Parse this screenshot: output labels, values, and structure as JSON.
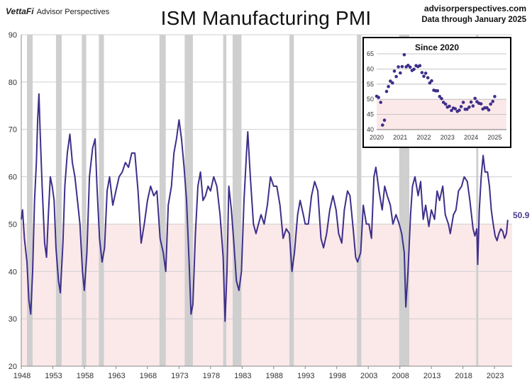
{
  "brand": {
    "logo": "VettaFi",
    "name": "Advisor Perspectives"
  },
  "title": "ISM Manufacturing PMI",
  "source": {
    "site": "advisorperspectives.com",
    "note": "Data through January 2025"
  },
  "colors": {
    "line": "#3f2f8a",
    "recession": "#cfcfcf",
    "below50": "#fbe9ea",
    "grid": "#cfcfcf"
  },
  "chart_data": {
    "type": "line",
    "series": [
      {
        "name": "",
        "last_label": "50.9"
      }
    ],
    "ylim": [
      20,
      90
    ],
    "yticks": [
      20,
      30,
      40,
      50,
      60,
      70,
      80,
      90
    ],
    "xticks": [
      "1948",
      "1953",
      "1958",
      "1963",
      "1968",
      "1973",
      "1978",
      "1983",
      "1988",
      "1993",
      "1998",
      "2003",
      "2008",
      "2013",
      "2018",
      "2023"
    ],
    "recessions": [
      [
        1948.9,
        1949.8
      ],
      [
        1953.5,
        1954.4
      ],
      [
        1957.6,
        1958.3
      ],
      [
        1960.3,
        1961.1
      ],
      [
        1969.9,
        1970.9
      ],
      [
        1973.9,
        1975.2
      ],
      [
        1980.0,
        1980.5
      ],
      [
        1981.5,
        1982.9
      ],
      [
        1990.5,
        1991.2
      ],
      [
        2001.2,
        2001.9
      ],
      [
        2007.9,
        2009.5
      ],
      [
        2020.1,
        2020.3
      ]
    ],
    "points": [
      [
        1948.0,
        51
      ],
      [
        1948.2,
        53
      ],
      [
        1948.5,
        47
      ],
      [
        1948.9,
        42
      ],
      [
        1949.2,
        34
      ],
      [
        1949.5,
        31
      ],
      [
        1949.8,
        40
      ],
      [
        1950.1,
        55
      ],
      [
        1950.4,
        63
      ],
      [
        1950.6,
        72
      ],
      [
        1950.8,
        77.5
      ],
      [
        1951.0,
        69
      ],
      [
        1951.3,
        58
      ],
      [
        1951.7,
        46
      ],
      [
        1952.0,
        43
      ],
      [
        1952.3,
        52
      ],
      [
        1952.6,
        60
      ],
      [
        1952.9,
        58
      ],
      [
        1953.2,
        55
      ],
      [
        1953.5,
        45
      ],
      [
        1953.9,
        38
      ],
      [
        1954.2,
        35.5
      ],
      [
        1954.6,
        46
      ],
      [
        1954.9,
        58
      ],
      [
        1955.3,
        65
      ],
      [
        1955.7,
        69
      ],
      [
        1956.1,
        63
      ],
      [
        1956.5,
        60
      ],
      [
        1956.9,
        55
      ],
      [
        1957.3,
        50
      ],
      [
        1957.7,
        40
      ],
      [
        1958.0,
        36
      ],
      [
        1958.4,
        44
      ],
      [
        1958.8,
        60
      ],
      [
        1959.3,
        66
      ],
      [
        1959.7,
        68
      ],
      [
        1960.0,
        58
      ],
      [
        1960.4,
        47
      ],
      [
        1960.8,
        42
      ],
      [
        1961.2,
        45
      ],
      [
        1961.6,
        57
      ],
      [
        1962.0,
        60
      ],
      [
        1962.5,
        54
      ],
      [
        1963.0,
        57
      ],
      [
        1963.5,
        60
      ],
      [
        1964.0,
        61
      ],
      [
        1964.5,
        63
      ],
      [
        1965.0,
        62
      ],
      [
        1965.5,
        65
      ],
      [
        1966.0,
        65
      ],
      [
        1966.5,
        57
      ],
      [
        1967.0,
        46
      ],
      [
        1967.5,
        50
      ],
      [
        1968.0,
        55
      ],
      [
        1968.5,
        58
      ],
      [
        1969.0,
        56
      ],
      [
        1969.5,
        57
      ],
      [
        1970.0,
        47
      ],
      [
        1970.5,
        44
      ],
      [
        1970.9,
        40
      ],
      [
        1971.3,
        54
      ],
      [
        1971.8,
        58
      ],
      [
        1972.2,
        65
      ],
      [
        1972.6,
        68
      ],
      [
        1973.0,
        72
      ],
      [
        1973.4,
        68
      ],
      [
        1973.8,
        62
      ],
      [
        1974.2,
        55
      ],
      [
        1974.6,
        42
      ],
      [
        1974.9,
        31
      ],
      [
        1975.2,
        33
      ],
      [
        1975.6,
        48
      ],
      [
        1976.0,
        58
      ],
      [
        1976.4,
        61
      ],
      [
        1976.8,
        55
      ],
      [
        1977.2,
        56
      ],
      [
        1977.6,
        58
      ],
      [
        1978.0,
        57
      ],
      [
        1978.5,
        60
      ],
      [
        1979.0,
        58
      ],
      [
        1979.5,
        52
      ],
      [
        1980.0,
        43
      ],
      [
        1980.3,
        29.5
      ],
      [
        1980.6,
        40
      ],
      [
        1980.9,
        58
      ],
      [
        1981.3,
        53
      ],
      [
        1981.7,
        46
      ],
      [
        1982.1,
        38
      ],
      [
        1982.5,
        36
      ],
      [
        1982.9,
        40
      ],
      [
        1983.3,
        55
      ],
      [
        1983.7,
        65
      ],
      [
        1983.9,
        69.5
      ],
      [
        1984.3,
        60
      ],
      [
        1984.8,
        50
      ],
      [
        1985.2,
        48
      ],
      [
        1985.6,
        50
      ],
      [
        1986.0,
        52
      ],
      [
        1986.5,
        50
      ],
      [
        1987.0,
        54
      ],
      [
        1987.5,
        60
      ],
      [
        1988.0,
        58
      ],
      [
        1988.5,
        58
      ],
      [
        1989.0,
        54
      ],
      [
        1989.5,
        47
      ],
      [
        1990.0,
        49
      ],
      [
        1990.5,
        48
      ],
      [
        1990.9,
        40
      ],
      [
        1991.3,
        44
      ],
      [
        1991.8,
        52
      ],
      [
        1992.2,
        55
      ],
      [
        1992.7,
        52
      ],
      [
        1993.0,
        50
      ],
      [
        1993.5,
        50
      ],
      [
        1994.0,
        56
      ],
      [
        1994.5,
        59
      ],
      [
        1995.0,
        57
      ],
      [
        1995.5,
        47
      ],
      [
        1995.9,
        45
      ],
      [
        1996.4,
        48
      ],
      [
        1996.9,
        53
      ],
      [
        1997.4,
        56
      ],
      [
        1997.9,
        53
      ],
      [
        1998.3,
        48
      ],
      [
        1998.8,
        46
      ],
      [
        1999.2,
        53
      ],
      [
        1999.7,
        57
      ],
      [
        2000.1,
        56
      ],
      [
        2000.6,
        49
      ],
      [
        2001.0,
        43
      ],
      [
        2001.3,
        42
      ],
      [
        2001.8,
        44
      ],
      [
        2002.2,
        54
      ],
      [
        2002.7,
        50
      ],
      [
        2003.1,
        50
      ],
      [
        2003.5,
        47
      ],
      [
        2003.9,
        60
      ],
      [
        2004.2,
        62
      ],
      [
        2004.7,
        57
      ],
      [
        2005.2,
        53
      ],
      [
        2005.6,
        58
      ],
      [
        2006.0,
        56
      ],
      [
        2006.5,
        54
      ],
      [
        2006.9,
        50
      ],
      [
        2007.4,
        52
      ],
      [
        2007.9,
        50
      ],
      [
        2008.3,
        48
      ],
      [
        2008.7,
        44
      ],
      [
        2008.95,
        32.5
      ],
      [
        2009.3,
        40
      ],
      [
        2009.7,
        52
      ],
      [
        2010.0,
        58
      ],
      [
        2010.4,
        60
      ],
      [
        2010.9,
        56
      ],
      [
        2011.3,
        59
      ],
      [
        2011.7,
        51
      ],
      [
        2012.1,
        54
      ],
      [
        2012.6,
        49.5
      ],
      [
        2013.0,
        53
      ],
      [
        2013.5,
        51
      ],
      [
        2013.9,
        57
      ],
      [
        2014.3,
        55
      ],
      [
        2014.8,
        58
      ],
      [
        2015.2,
        52
      ],
      [
        2015.7,
        50
      ],
      [
        2016.0,
        48
      ],
      [
        2016.5,
        52
      ],
      [
        2016.9,
        53
      ],
      [
        2017.3,
        57
      ],
      [
        2017.8,
        58
      ],
      [
        2018.2,
        60
      ],
      [
        2018.7,
        59
      ],
      [
        2019.1,
        55
      ],
      [
        2019.6,
        49
      ],
      [
        2019.9,
        47.5
      ],
      [
        2020.2,
        49
      ],
      [
        2020.35,
        41.5
      ],
      [
        2020.6,
        53
      ],
      [
        2020.9,
        60
      ],
      [
        2021.2,
        64.5
      ],
      [
        2021.5,
        61
      ],
      [
        2021.9,
        61
      ],
      [
        2022.2,
        58
      ],
      [
        2022.5,
        53
      ],
      [
        2022.8,
        50
      ],
      [
        2023.1,
        47.5
      ],
      [
        2023.4,
        46.5
      ],
      [
        2023.7,
        48
      ],
      [
        2024.0,
        49
      ],
      [
        2024.3,
        48.5
      ],
      [
        2024.6,
        47
      ],
      [
        2024.9,
        48
      ],
      [
        2025.1,
        50.9
      ]
    ]
  },
  "inset_data": {
    "type": "scatter",
    "title": "Since 2020",
    "ylim": [
      40,
      65
    ],
    "yticks": [
      40,
      45,
      50,
      55,
      60,
      65
    ],
    "xlim": [
      2020,
      2025.5
    ],
    "xticks": [
      "2020",
      "2021",
      "2022",
      "2023",
      "2024",
      "2025"
    ],
    "points": [
      [
        2020.0,
        51
      ],
      [
        2020.08,
        50.6
      ],
      [
        2020.17,
        49
      ],
      [
        2020.25,
        41.5
      ],
      [
        2020.33,
        43.1
      ],
      [
        2020.42,
        52.6
      ],
      [
        2020.5,
        54.2
      ],
      [
        2020.58,
        56
      ],
      [
        2020.67,
        55.4
      ],
      [
        2020.75,
        59.3
      ],
      [
        2020.83,
        57.5
      ],
      [
        2020.92,
        60.7
      ],
      [
        2021.0,
        58.7
      ],
      [
        2021.08,
        60.8
      ],
      [
        2021.17,
        64.7
      ],
      [
        2021.25,
        60.7
      ],
      [
        2021.33,
        61.2
      ],
      [
        2021.42,
        60.6
      ],
      [
        2021.5,
        59.5
      ],
      [
        2021.58,
        59.9
      ],
      [
        2021.67,
        61.1
      ],
      [
        2021.75,
        60.8
      ],
      [
        2021.83,
        61.1
      ],
      [
        2021.92,
        58.8
      ],
      [
        2022.0,
        57.6
      ],
      [
        2022.08,
        58.6
      ],
      [
        2022.17,
        57.1
      ],
      [
        2022.25,
        55.4
      ],
      [
        2022.33,
        56.1
      ],
      [
        2022.42,
        53
      ],
      [
        2022.5,
        52.8
      ],
      [
        2022.58,
        52.8
      ],
      [
        2022.67,
        50.9
      ],
      [
        2022.75,
        50.2
      ],
      [
        2022.83,
        49
      ],
      [
        2022.92,
        48.4
      ],
      [
        2023.0,
        47.4
      ],
      [
        2023.08,
        47.7
      ],
      [
        2023.17,
        46.3
      ],
      [
        2023.25,
        47.1
      ],
      [
        2023.33,
        46.9
      ],
      [
        2023.42,
        46
      ],
      [
        2023.5,
        46.4
      ],
      [
        2023.58,
        47.6
      ],
      [
        2023.67,
        49
      ],
      [
        2023.75,
        46.7
      ],
      [
        2023.83,
        46.7
      ],
      [
        2023.92,
        47.4
      ],
      [
        2024.0,
        49.1
      ],
      [
        2024.08,
        47.8
      ],
      [
        2024.17,
        50.3
      ],
      [
        2024.25,
        49.2
      ],
      [
        2024.33,
        48.7
      ],
      [
        2024.42,
        48.5
      ],
      [
        2024.5,
        46.8
      ],
      [
        2024.58,
        47.2
      ],
      [
        2024.67,
        47.2
      ],
      [
        2024.75,
        46.5
      ],
      [
        2024.83,
        48.4
      ],
      [
        2024.92,
        49.3
      ],
      [
        2025.0,
        50.9
      ]
    ]
  }
}
